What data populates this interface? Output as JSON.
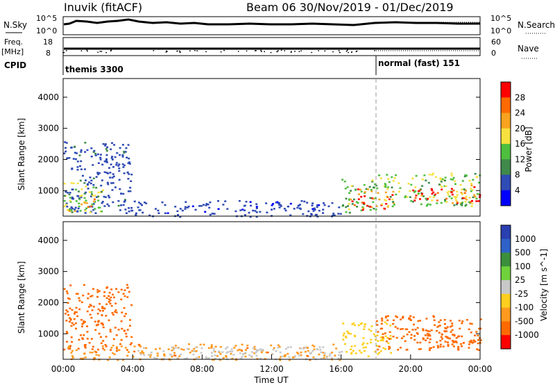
{
  "header": {
    "station": "Inuvik (fitACF)",
    "title": "Beam 06  30/Nov/2019 - 01/Dec/2019"
  },
  "top_panels": {
    "nsky_label": "N.Sky",
    "nsearch_label": "N.Search",
    "nsky_ticks": [
      "10^5",
      "10^0"
    ],
    "nsearch_ticks": [
      "10^5",
      "10^0"
    ],
    "freq_label_1": "Freq.",
    "freq_label_2": "[MHz]",
    "freq_ticks": [
      "18",
      "8"
    ],
    "nave_label": "Nave",
    "nave_ticks": [
      "60",
      "0"
    ],
    "cpid_label": "CPID",
    "cpid_segments": [
      {
        "label": "themis 3300",
        "start": "00:00",
        "end": "18:00"
      },
      {
        "label": "normal (fast) 151",
        "start": "18:00",
        "end": "24:00"
      }
    ]
  },
  "x_axis": {
    "label": "Time UT",
    "ticks": [
      "00:00",
      "04:00",
      "08:00",
      "12:00",
      "16:00",
      "20:00",
      "00:00"
    ]
  },
  "colors": {
    "power": [
      "#0000ff",
      "#2f4bb4",
      "#3f8a4a",
      "#4fbf3f",
      "#f7e13f",
      "#f9a31f",
      "#ff6a00",
      "#ff0000"
    ],
    "velocity": [
      "#2a3fb0",
      "#2f62c8",
      "#3b8f3b",
      "#6fd23c",
      "#c8c8c8",
      "#ffcf1f",
      "#ff9a1f",
      "#ff6a00",
      "#ff0000"
    ]
  },
  "chart_data": [
    {
      "type": "heatmap",
      "name": "power",
      "title": "",
      "xlabel": "",
      "ylabel": "Slant Range [km]",
      "xlim": [
        0,
        24
      ],
      "ylim": [
        180,
        4600
      ],
      "y_ticks": [
        "1000",
        "2000",
        "3000",
        "4000"
      ],
      "colorbar": {
        "label": "Power [dB]",
        "ticks": [
          "4",
          "8",
          "12",
          "16",
          "20",
          "24",
          "28"
        ],
        "range": [
          0,
          30
        ]
      },
      "regions": [
        {
          "t0": 0.0,
          "t1": 3.9,
          "r0": 300,
          "r1": 2600,
          "value": 6
        },
        {
          "t0": 0.0,
          "t1": 2.3,
          "r0": 300,
          "r1": 1300,
          "value": 14
        },
        {
          "t0": 0.3,
          "t1": 1.8,
          "r0": 350,
          "r1": 800,
          "value": 20
        },
        {
          "t0": 3.9,
          "t1": 16.0,
          "r0": 180,
          "r1": 700,
          "value": 5
        },
        {
          "t0": 16.0,
          "t1": 18.0,
          "r0": 300,
          "r1": 1400,
          "value": 12
        },
        {
          "t0": 16.5,
          "t1": 19.0,
          "r0": 400,
          "r1": 1100,
          "value": 24
        },
        {
          "t0": 18.0,
          "t1": 24.0,
          "r0": 500,
          "r1": 1600,
          "value": 14
        },
        {
          "t0": 20.0,
          "t1": 22.0,
          "r0": 700,
          "r1": 1100,
          "value": 28
        },
        {
          "t0": 22.0,
          "t1": 24.0,
          "r0": 600,
          "r1": 1200,
          "value": 26
        }
      ]
    },
    {
      "type": "heatmap",
      "name": "velocity",
      "title": "",
      "xlabel": "Time UT",
      "ylabel": "Slant Range [km]",
      "xlim": [
        0,
        24
      ],
      "ylim": [
        180,
        4600
      ],
      "y_ticks": [
        "1000",
        "2000",
        "3000",
        "4000"
      ],
      "colorbar": {
        "label": "Velocity [m s^-1]",
        "ticks": [
          "1000",
          "500",
          "100",
          "25",
          "-25",
          "-100",
          "-500",
          "-1000"
        ]
      },
      "regions": [
        {
          "t0": 0.0,
          "t1": 3.9,
          "r0": 500,
          "r1": 2600,
          "value": -300
        },
        {
          "t0": 0.0,
          "t1": 16.0,
          "r0": 180,
          "r1": 700,
          "value": -80
        },
        {
          "t0": 4.0,
          "t1": 16.0,
          "r0": 200,
          "r1": 600,
          "value": 60
        },
        {
          "t0": 16.0,
          "t1": 19.0,
          "r0": 300,
          "r1": 1400,
          "value": 0
        },
        {
          "t0": 18.0,
          "t1": 24.0,
          "r0": 500,
          "r1": 1600,
          "value": -300
        },
        {
          "t0": 20.5,
          "t1": 24.0,
          "r0": 600,
          "r1": 1200,
          "value": -150
        }
      ]
    }
  ]
}
